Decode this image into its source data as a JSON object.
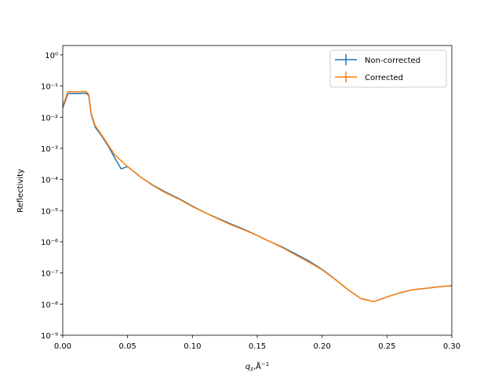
{
  "chart_data": {
    "type": "line",
    "log_y": true,
    "legend": "upper right",
    "xlabel": "qz,Å−1",
    "ylabel": "Reflectivity",
    "xlim": [
      0,
      0.3
    ],
    "ylim": [
      1e-09,
      2
    ],
    "xticks": [
      {
        "value": 0,
        "label": "0.00"
      },
      0.05,
      {
        "value": 0.1,
        "label": "0.10"
      },
      0.15,
      {
        "value": 0.2,
        "label": "0.20"
      },
      0.25,
      {
        "value": 0.3,
        "label": "0.30"
      }
    ],
    "yticks": [
      {
        "value": 1e-09,
        "label": "10⁻⁹"
      },
      {
        "value": 1e-08,
        "label": "10⁻⁸"
      },
      {
        "value": 1e-07,
        "label": "10⁻⁷"
      },
      {
        "value": 1e-06,
        "label": "10⁻⁶"
      },
      {
        "value": 1e-05,
        "label": "10⁻⁵"
      },
      {
        "value": 0.0001,
        "label": "10⁻⁴"
      },
      {
        "value": 0.001,
        "label": "10⁻³"
      },
      {
        "value": 0.01,
        "label": "10⁻²"
      },
      {
        "value": 0.1,
        "label": "10⁻¹"
      },
      {
        "value": 1,
        "label": "10⁰"
      }
    ],
    "x": [
      0,
      0.004,
      0.01,
      0.018,
      0.02,
      0.022,
      0.025,
      0.03,
      0.035,
      0.04,
      0.045,
      0.05,
      0.06,
      0.07,
      0.08,
      0.09,
      0.1,
      0.11,
      0.12,
      0.13,
      0.14,
      0.15,
      0.16,
      0.17,
      0.18,
      0.19,
      0.2,
      0.21,
      0.22,
      0.23,
      0.24,
      0.25,
      0.26,
      0.27,
      0.28,
      0.29,
      0.3
    ],
    "series": [
      {
        "name": "Non-corrected",
        "color": "#1f77b4",
        "values": [
          0.02,
          0.057,
          0.057,
          0.059,
          0.05,
          0.012,
          0.0048,
          0.0025,
          0.0012,
          0.0005,
          0.00022,
          0.00026,
          0.00012,
          6.4e-05,
          3.8e-05,
          2.4e-05,
          1.4e-05,
          8.5e-06,
          5.6e-06,
          3.7e-06,
          2.5e-06,
          1.6e-06,
          1e-06,
          6.6e-07,
          4e-07,
          2.4e-07,
          1.3e-07,
          6.3e-08,
          2.9e-08,
          1.5e-08,
          1.2e-08,
          1.7e-08,
          2.3e-08,
          2.9e-08,
          3.2e-08,
          3.6e-08,
          3.9e-08
        ]
      },
      {
        "name": "Corrected",
        "color": "#ff7f0e",
        "values": [
          0.023,
          0.066,
          0.065,
          0.067,
          0.055,
          0.013,
          0.0054,
          0.0027,
          0.0013,
          0.00063,
          0.0004,
          0.00026,
          0.00012,
          6.2e-05,
          3.6e-05,
          2.3e-05,
          1.35e-05,
          8.5e-06,
          5.4e-06,
          3.5e-06,
          2.4e-06,
          1.6e-06,
          1e-06,
          6.3e-07,
          3.7e-07,
          2.2e-07,
          1.26e-07,
          6.2e-08,
          2.9e-08,
          1.5e-08,
          1.2e-08,
          1.7e-08,
          2.3e-08,
          2.9e-08,
          3.2e-08,
          3.6e-08,
          3.9e-08
        ]
      }
    ]
  }
}
